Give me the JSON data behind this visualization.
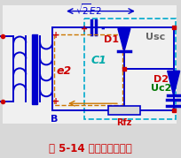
{
  "title": "图 5-14 二倍压整流电路",
  "title_color": "#cc0000",
  "bg_color": "#d8d8d8",
  "wire_color": "#0000cc",
  "orange_color": "#cc7700",
  "cyan_color": "#00aaaa",
  "red_color": "#cc0000",
  "gray_color": "#666666",
  "green_color": "#007700",
  "dashed_color": "#00aacc",
  "label_e2": "e2",
  "label_C1": "C1",
  "label_D1": "D1",
  "label_D2": "D2",
  "label_Usc": "Usc",
  "label_Uc2": "Uc2",
  "label_Rfz": "Rfz",
  "label_B": "B"
}
